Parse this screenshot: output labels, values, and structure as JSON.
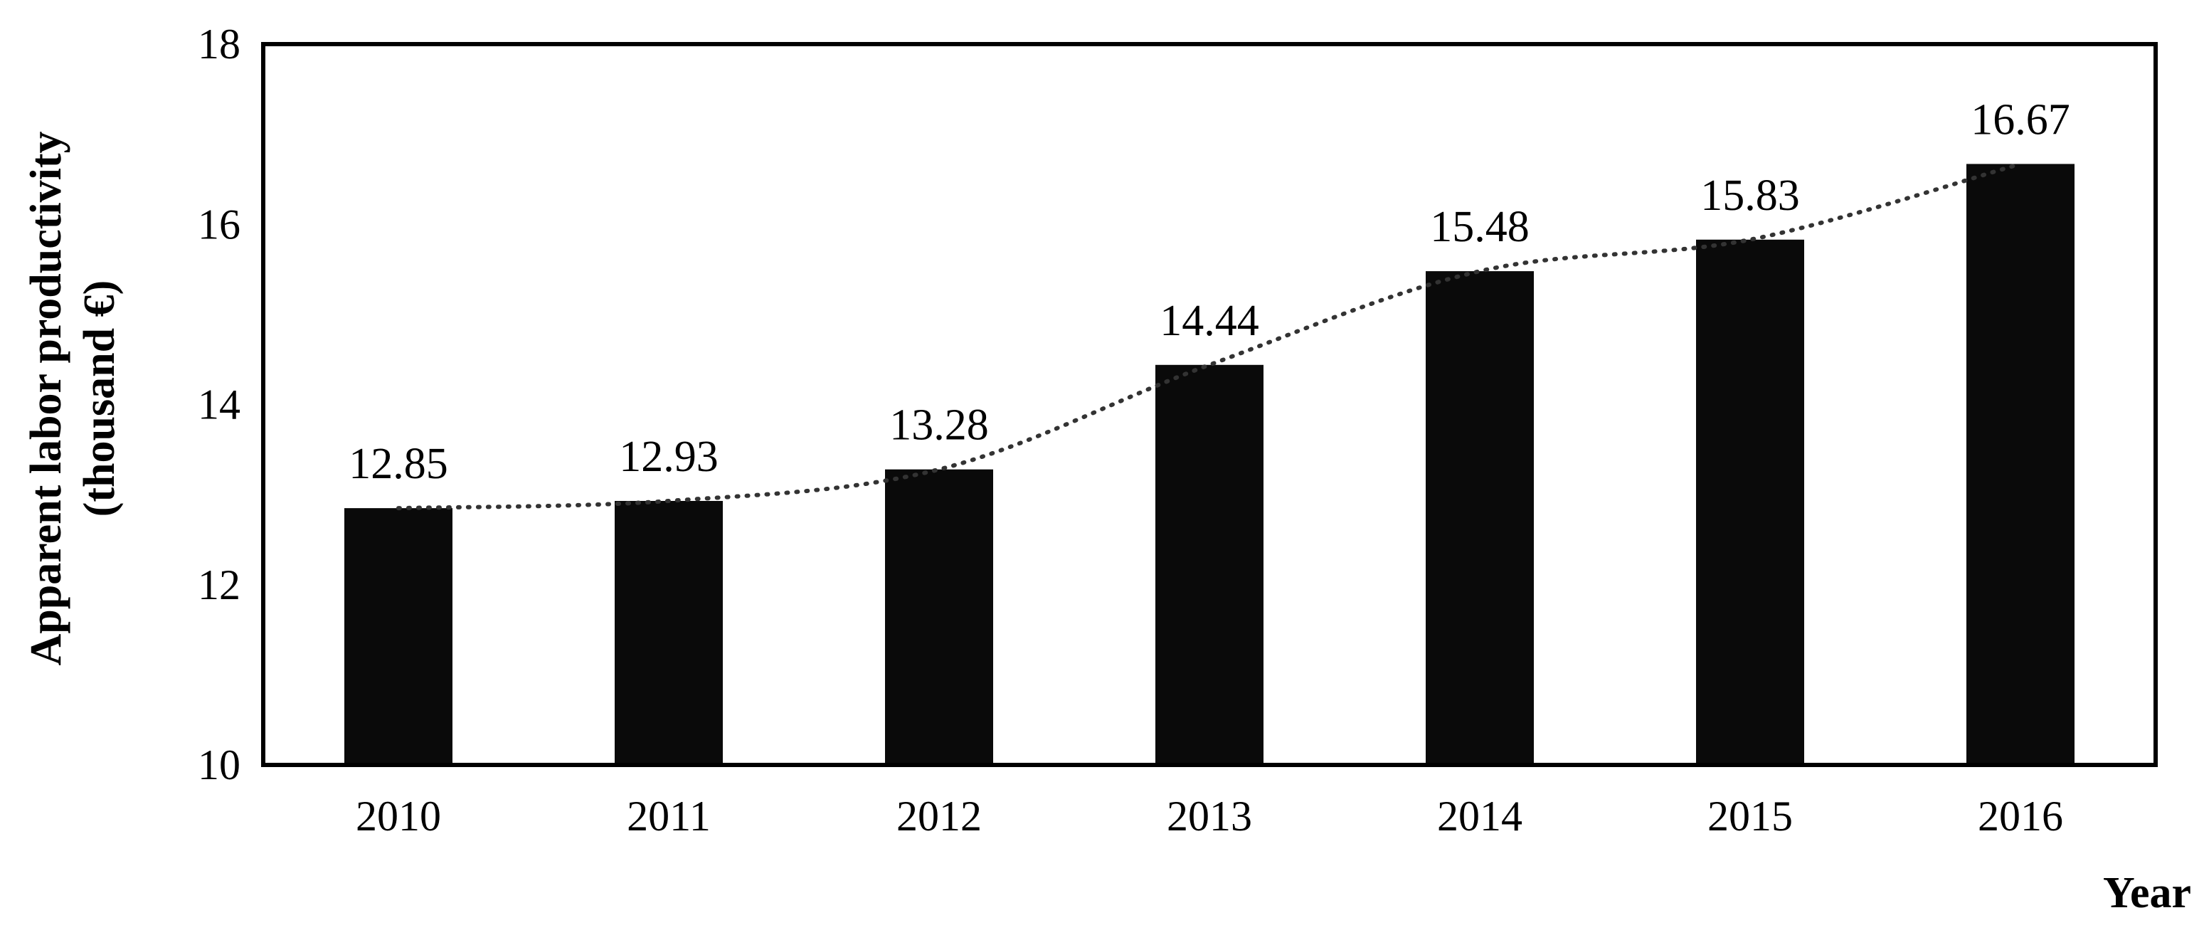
{
  "chart_data": {
    "type": "bar",
    "categories": [
      "2010",
      "2011",
      "2012",
      "2013",
      "2014",
      "2015",
      "2016"
    ],
    "values": [
      12.85,
      12.93,
      13.28,
      14.44,
      15.48,
      15.83,
      16.67
    ],
    "data_labels": [
      "12.85",
      "12.93",
      "13.28",
      "14.44",
      "15.48",
      "15.83",
      "16.67"
    ],
    "title": "",
    "xlabel": "Year",
    "ylabel_line1": "Apparent labor productivity",
    "ylabel_line2": "(thousand €)",
    "ylim": [
      10,
      18
    ],
    "yticks": [
      "10",
      "12",
      "14",
      "16",
      "18"
    ],
    "grid": false,
    "trendline": "dotted",
    "bar_color": "#0a0a0a",
    "trend_color": "#333333"
  }
}
